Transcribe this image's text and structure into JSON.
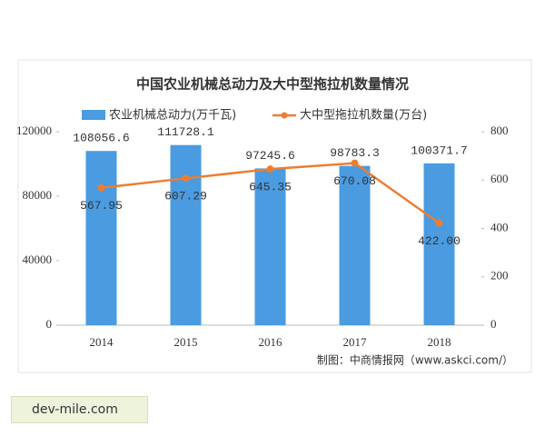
{
  "chart_data": {
    "type": "bar-line",
    "title": "中国农业机械总动力及大中型拖拉机数量情况",
    "categories": [
      "2014",
      "2015",
      "2016",
      "2017",
      "2018"
    ],
    "series": [
      {
        "name": "农业机械总动力(万千瓦)",
        "type": "bar",
        "color": "#4a9be0",
        "values": [
          108056.6,
          111728.1,
          97245.6,
          98783.3,
          100371.7
        ]
      },
      {
        "name": "大中型拖拉机数量(万台)",
        "type": "line",
        "axis": "y2",
        "color": "#ed7d31",
        "values": [
          567.95,
          607.29,
          645.35,
          670.08,
          422.0
        ],
        "value_labels": [
          "567.95",
          "607.29",
          "645.35",
          "670.08",
          "422.00"
        ]
      }
    ],
    "ylim": [
      0,
      120000
    ],
    "yticks": [
      0,
      40000,
      80000,
      120000
    ],
    "y2lim": [
      0,
      800
    ],
    "y2ticks": [
      0,
      200,
      400,
      600,
      800
    ],
    "legend": "top",
    "grid": false,
    "source": "制图：中商情报网（www.askci.com/）"
  },
  "footer": "dev-mile.com"
}
